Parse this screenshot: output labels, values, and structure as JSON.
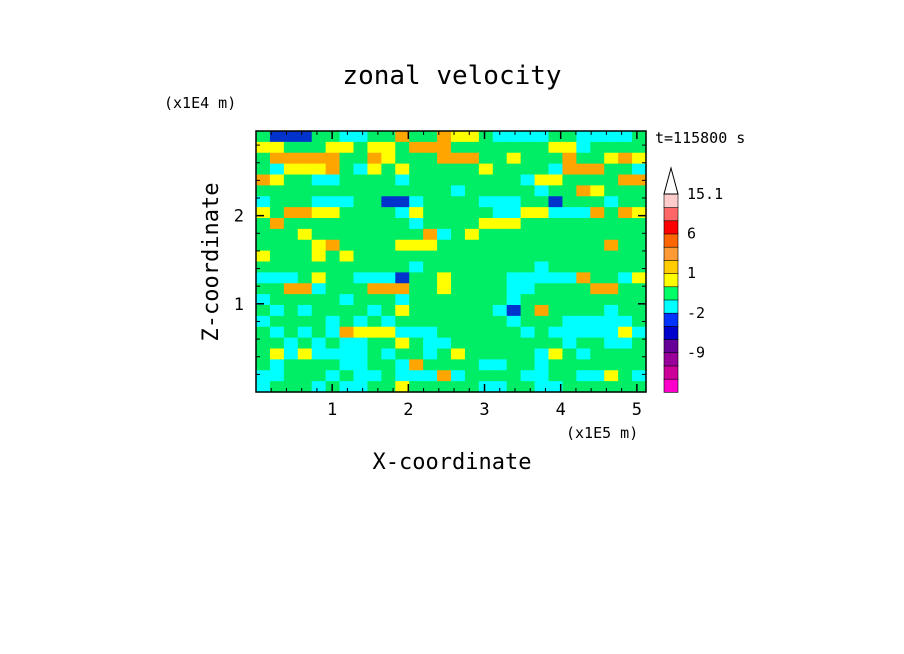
{
  "chart_data": {
    "type": "heatmap",
    "title": "zonal velocity",
    "xlabel": "X-coordinate",
    "ylabel": "Z-coordinate",
    "x_unit": "(x1E5 m)",
    "y_unit": "(x1E4 m)",
    "time_label": "t=115800 s",
    "xlim": [
      0,
      5.12
    ],
    "ylim": [
      0,
      2.96
    ],
    "x_ticks": [
      1,
      2,
      3,
      4,
      5
    ],
    "x_tick_labels": [
      "1",
      "2",
      "3",
      "4",
      "5"
    ],
    "y_ticks": [
      1,
      2
    ],
    "y_tick_labels": [
      "1",
      "2"
    ],
    "colorbar": {
      "labels": [
        "15.1",
        "6",
        "1",
        "-2",
        "-9"
      ],
      "levels": [
        -15,
        -12,
        -9,
        -6,
        -3,
        -2,
        -1,
        0,
        1,
        2,
        3,
        6,
        9,
        12,
        15.1
      ],
      "colors": [
        "#ff00cc",
        "#cc0099",
        "#990099",
        "#660099",
        "#0000cc",
        "#0033ff",
        "#00ffff",
        "#00ff66",
        "#ffff00",
        "#ffcc00",
        "#ff9933",
        "#ff6600",
        "#ff0000",
        "#ff6666",
        "#ffcccc"
      ],
      "extend": "max"
    },
    "field": {
      "rows_top_to_bottom": [
        "2bbb22aa229cc9882aaaa22aaaa2",
        "88222882882999222222288a2222",
        "2999992298222999228222922898",
        "2a88892a8282222282222a99922a",
        "9822aa2222a22222222a88222299",
        "22222222222222a22222a2298222",
        "a222aaa22bba2222aaa22b222a22",
        "8299882222a822222aa88aaa9298",
        "29222222222a2222888222222222",
        "2228222222229a28222222222222",
        "2222892222888222222222222922",
        "8222828222222222222222222222",
        "22222222222a22222222a2222222",
        "aaa2822aaab2282222aaaaa922a8",
        "2299a2229992282222aa22229922",
        "a22222a222a2222222a222222222",
        "2a2a2222a28222222ab292222a22",
        "a2222a2a2a22222222a222aaaaa2",
        "2a2a2a9888aaa222222a2aaaaa8a",
        "22a2a2aa2282aa22222222a22aa2",
        "28a8aaaa2a22a2822222a82a2222",
        "2a2222aa22a92222aa22a2222222",
        "aa222a2aa2aaa9a2222aa22aa82a",
        "a222a2aa22822222aa22aa222222"
      ]
    }
  }
}
